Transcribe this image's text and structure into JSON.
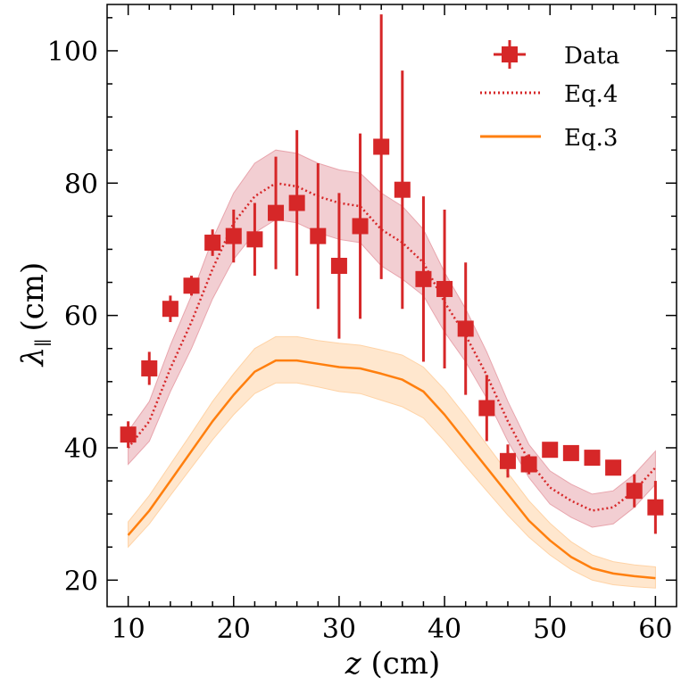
{
  "chart_data": {
    "type": "line",
    "title": "",
    "xlabel_var": "z",
    "xlabel_unit": "(cm)",
    "ylabel_var": "λ",
    "ylabel_sub": "∥",
    "ylabel_unit": "(cm)",
    "xlim": [
      8,
      62
    ],
    "ylim": [
      16,
      107
    ],
    "xticks": [
      10,
      20,
      30,
      40,
      50,
      60
    ],
    "yticks": [
      20,
      40,
      60,
      80,
      100
    ],
    "grid": false,
    "legend_position": "top-right",
    "legend": [
      "Data",
      "Eq.4",
      "Eq.3"
    ],
    "colors": {
      "data": "#d62728",
      "eq4": "#d62728",
      "eq4_band": "#e8a5ad",
      "eq3": "#ff7f0e",
      "eq3_band": "#ffd3a6"
    },
    "series": [
      {
        "name": "Data",
        "style": "square-markers-with-errorbars",
        "points": [
          {
            "x": 10,
            "y": 42,
            "err": 2
          },
          {
            "x": 12,
            "y": 52,
            "err": 2.5
          },
          {
            "x": 14,
            "y": 61,
            "err": 2
          },
          {
            "x": 16,
            "y": 64.5,
            "err": 1.5
          },
          {
            "x": 18,
            "y": 71,
            "err": 2
          },
          {
            "x": 20,
            "y": 72,
            "err": 4
          },
          {
            "x": 22,
            "y": 71.5,
            "err": 5.5
          },
          {
            "x": 24,
            "y": 75.5,
            "err": 8.5
          },
          {
            "x": 26,
            "y": 77,
            "err": 11
          },
          {
            "x": 28,
            "y": 72,
            "err": 11
          },
          {
            "x": 30,
            "y": 67.5,
            "err": 11
          },
          {
            "x": 32,
            "y": 73.5,
            "err": 14
          },
          {
            "x": 34,
            "y": 85.5,
            "err": 20
          },
          {
            "x": 36,
            "y": 79,
            "err": 18
          },
          {
            "x": 38,
            "y": 65.5,
            "err": 12.5
          },
          {
            "x": 40,
            "y": 64,
            "err": 12
          },
          {
            "x": 42,
            "y": 58,
            "err": 10
          },
          {
            "x": 44,
            "y": 46,
            "err": 5
          },
          {
            "x": 46,
            "y": 38,
            "err": 2.5
          },
          {
            "x": 48,
            "y": 37.5,
            "err": 1.5
          },
          {
            "x": 50,
            "y": 39.7,
            "err": 1
          },
          {
            "x": 52,
            "y": 39.2,
            "err": 1
          },
          {
            "x": 54,
            "y": 38.5,
            "err": 1
          },
          {
            "x": 56,
            "y": 37,
            "err": 1
          },
          {
            "x": 58,
            "y": 33.5,
            "err": 2.5
          },
          {
            "x": 60,
            "y": 31,
            "err": 4
          }
        ]
      },
      {
        "name": "Eq.4",
        "style": "dotted-line-with-band",
        "x": [
          10,
          12,
          14,
          16,
          18,
          20,
          22,
          24,
          26,
          28,
          30,
          32,
          34,
          36,
          38,
          40,
          42,
          44,
          46,
          48,
          50,
          52,
          54,
          56,
          58,
          60
        ],
        "y": [
          40,
          44,
          52,
          59,
          67,
          74,
          78,
          80,
          79.5,
          78,
          77,
          76.5,
          73,
          71,
          68,
          62,
          57,
          51,
          44,
          38,
          34,
          32,
          30.5,
          31,
          33.5,
          37
        ],
        "lower": [
          37.5,
          41,
          48.5,
          55,
          62.5,
          68.5,
          72.5,
          74.5,
          74,
          72.5,
          71.5,
          71,
          67.5,
          65.5,
          63,
          57.5,
          53,
          47.5,
          41,
          35.5,
          31.5,
          29.5,
          28,
          28.5,
          31,
          34.5
        ],
        "upper": [
          42.5,
          47,
          55.5,
          63,
          71.5,
          78.5,
          83,
          85,
          84.5,
          83,
          82,
          81.5,
          78.5,
          76.5,
          73,
          66.5,
          61,
          54.5,
          47,
          40.5,
          36.5,
          34.5,
          33,
          33.5,
          36,
          39.5
        ]
      },
      {
        "name": "Eq.3",
        "style": "solid-line-with-band",
        "x": [
          10,
          12,
          14,
          16,
          18,
          20,
          22,
          24,
          26,
          28,
          30,
          32,
          34,
          36,
          38,
          40,
          42,
          44,
          46,
          48,
          50,
          52,
          54,
          56,
          58,
          60
        ],
        "y": [
          26.8,
          30.5,
          35,
          39.5,
          44,
          48,
          51.5,
          53.2,
          53.2,
          52.7,
          52.2,
          52,
          51.2,
          50.3,
          48.5,
          45,
          41,
          37,
          33,
          29,
          26,
          23.5,
          21.8,
          21,
          20.6,
          20.3
        ],
        "lower": [
          25,
          28.5,
          32.8,
          37,
          41.2,
          45,
          48.2,
          49.8,
          49.8,
          49.2,
          48.5,
          48.2,
          47.2,
          46.2,
          44.5,
          41,
          37.2,
          33.5,
          29.8,
          26.5,
          23.8,
          21.6,
          20,
          19.3,
          19,
          18.8
        ],
        "upper": [
          28.8,
          32.8,
          37.5,
          42.2,
          47,
          51.2,
          55,
          56.8,
          56.8,
          56.2,
          55.8,
          55.5,
          54.8,
          54,
          52.2,
          48.8,
          44.8,
          40.5,
          36.2,
          32,
          28.6,
          25.8,
          23.8,
          22.8,
          22.3,
          22
        ]
      }
    ]
  }
}
